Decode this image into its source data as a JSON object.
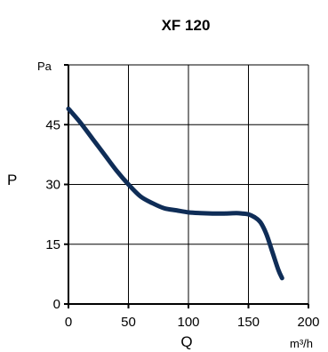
{
  "chart_data": {
    "type": "line",
    "title": "XF 120",
    "xlabel": "Q",
    "ylabel": "P",
    "x_unit": "m³/h",
    "y_unit": "Pa",
    "xlim": [
      0,
      200
    ],
    "ylim": [
      0,
      60
    ],
    "x_ticks": [
      0,
      50,
      100,
      150,
      200
    ],
    "y_ticks": [
      0,
      15,
      30,
      45
    ],
    "grid": true,
    "series": [
      {
        "color": "#0f2d57",
        "x": [
          0,
          10,
          20,
          30,
          40,
          50,
          60,
          70,
          80,
          90,
          100,
          110,
          120,
          130,
          140,
          145,
          150,
          155,
          160,
          165,
          170,
          175,
          178
        ],
        "y": [
          49,
          45.5,
          41.5,
          37.5,
          33.5,
          30,
          27,
          25.3,
          24,
          23.5,
          23,
          22.8,
          22.7,
          22.7,
          22.8,
          22.7,
          22.5,
          21.8,
          20.5,
          17.5,
          13,
          8.5,
          6.5
        ]
      }
    ]
  }
}
